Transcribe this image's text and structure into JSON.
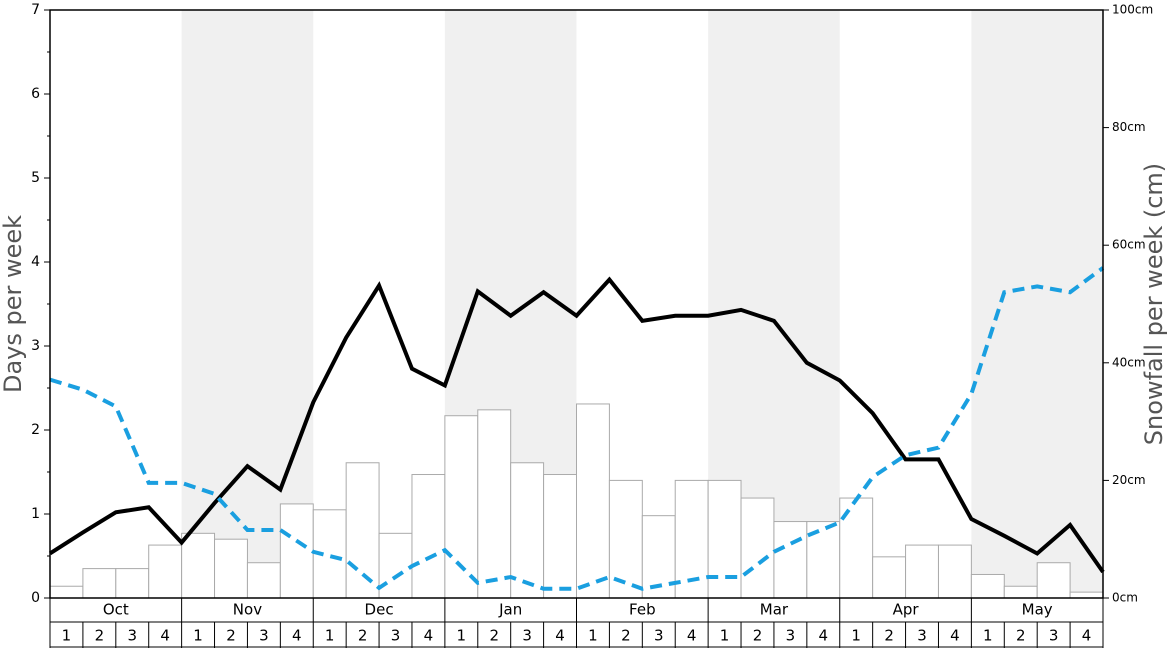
{
  "chart_data": {
    "type": "bar",
    "y_label": "Days per week",
    "y2_label": "Snowfall per week (cm)",
    "months": [
      "Oct",
      "Nov",
      "Dec",
      "Jan",
      "Feb",
      "Mar",
      "Apr",
      "May"
    ],
    "weeks": [
      "1",
      "2",
      "3",
      "4"
    ],
    "ylim": [
      0,
      7
    ],
    "yticks": [
      0,
      1,
      2,
      3,
      4,
      5,
      6,
      7
    ],
    "y2lim": [
      0,
      100
    ],
    "y2ticks": [
      {
        "value": 0,
        "label": "0cm"
      },
      {
        "value": 20,
        "label": "20cm"
      },
      {
        "value": 40,
        "label": "40cm"
      },
      {
        "value": 60,
        "label": "60cm"
      },
      {
        "value": 80,
        "label": "80cm"
      },
      {
        "value": 100,
        "label": "100cm"
      }
    ],
    "series": [
      {
        "type": "bar",
        "axis": "y2",
        "color": "#ffffff",
        "values": [
          2,
          5,
          5,
          9,
          11,
          10,
          6,
          16,
          15,
          23,
          11,
          21,
          31,
          32,
          23,
          21,
          33,
          20,
          14,
          20,
          20,
          17,
          13,
          13,
          17,
          7,
          9,
          9,
          4,
          2,
          6,
          1
        ]
      },
      {
        "type": "line",
        "color": "#000000",
        "values": [
          0.53,
          0.78,
          1.02,
          1.08,
          0.66,
          1.13,
          1.57,
          1.29,
          2.33,
          3.1,
          3.72,
          2.73,
          2.53,
          3.65,
          3.36,
          3.64,
          3.36,
          3.79,
          3.3,
          3.36,
          3.36,
          3.43,
          3.3,
          2.8,
          2.59,
          2.2,
          1.65,
          1.65,
          0.94,
          0.74,
          0.53,
          0.87,
          0.31
        ]
      },
      {
        "type": "line",
        "color": "#1a9fe0",
        "dashed": true,
        "values": [
          2.6,
          2.48,
          2.28,
          1.37,
          1.37,
          1.24,
          0.81,
          0.81,
          0.55,
          0.45,
          0.12,
          0.38,
          0.57,
          0.18,
          0.25,
          0.11,
          0.11,
          0.25,
          0.11,
          0.18,
          0.25,
          0.25,
          0.55,
          0.74,
          0.9,
          1.44,
          1.7,
          1.79,
          2.43,
          3.64,
          3.71,
          3.64,
          3.93
        ]
      }
    ]
  }
}
